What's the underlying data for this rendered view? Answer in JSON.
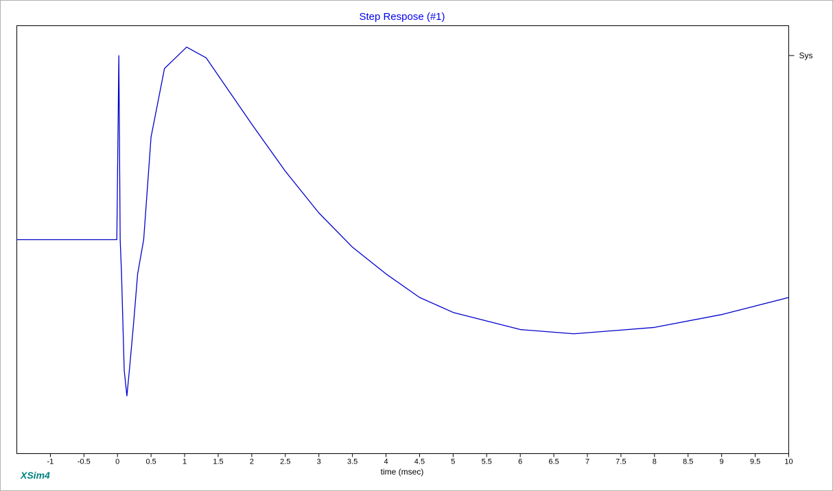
{
  "chart_data": {
    "type": "line",
    "title": "Step Respose (#1)",
    "xlabel": "time (msec)",
    "annotation": "XSim4",
    "x": [
      -1.5,
      -0.01,
      0.02,
      0.04,
      0.06,
      0.1,
      0.14,
      0.18,
      0.24,
      0.3,
      0.39,
      0.5,
      0.7,
      1.03,
      1.32,
      2,
      2.5,
      3,
      3.5,
      4,
      4.5,
      5,
      6,
      6.8,
      8,
      9,
      10
    ],
    "series": [
      {
        "name": "Sys",
        "color": "#0000cc",
        "values": [
          0,
          0,
          0.86,
          0,
          -0.16,
          -0.61,
          -0.73,
          -0.6,
          -0.39,
          -0.16,
          0,
          0.48,
          0.8,
          0.9,
          0.85,
          0.54,
          0.32,
          0.125,
          -0.035,
          -0.16,
          -0.27,
          -0.34,
          -0.42,
          -0.44,
          -0.41,
          -0.35,
          -0.27
        ]
      }
    ],
    "xlim": [
      -1.5,
      10
    ],
    "ylim": [
      -1,
      1
    ],
    "xticks": [
      -1,
      -0.5,
      0,
      0.5,
      1,
      1.5,
      2,
      2.5,
      3,
      3.5,
      4,
      4.5,
      5,
      5.5,
      6,
      6.5,
      7,
      7.5,
      8,
      8.5,
      9,
      9.5,
      10
    ],
    "legend": "right"
  }
}
